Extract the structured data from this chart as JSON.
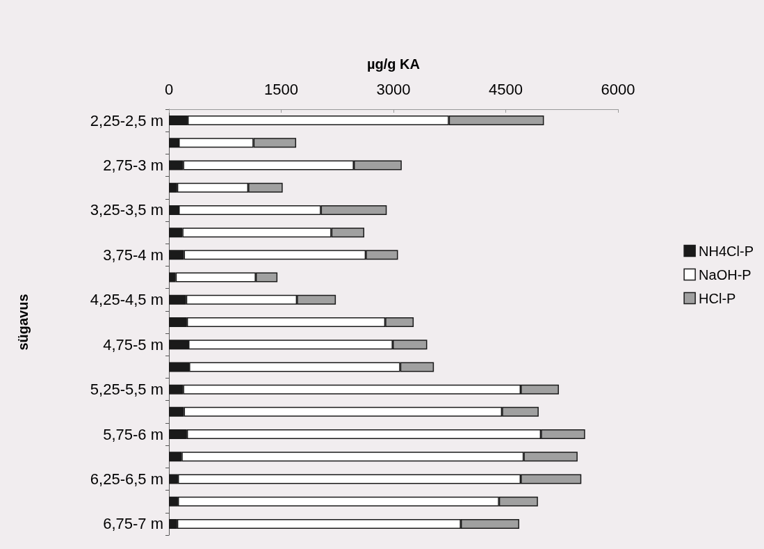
{
  "chart_data": {
    "type": "bar",
    "orientation": "horizontal",
    "stacked": true,
    "xlabel": "µg/g KA",
    "ylabel": "sügavus",
    "categories": [
      "2,25-2,5 m",
      null,
      "2,75-3 m",
      null,
      "3,25-3,5 m",
      null,
      "3,75-4 m",
      null,
      "4,25-4,5 m",
      null,
      "4,75-5 m",
      null,
      "5,25-5,5 m",
      null,
      "5,75-6 m",
      null,
      "6,25-6,5 m",
      null,
      "6,75-7 m"
    ],
    "series": [
      {
        "name": "NH4Cl-P",
        "color": "#1a1a1a",
        "values": [
          250,
          130,
          190,
          110,
          130,
          180,
          200,
          90,
          230,
          240,
          260,
          270,
          190,
          200,
          240,
          170,
          120,
          120,
          110
        ]
      },
      {
        "name": "NaOH-P",
        "color": "#ffffff",
        "values": [
          3490,
          1000,
          2280,
          950,
          1900,
          1990,
          2430,
          1070,
          1480,
          2650,
          2730,
          2820,
          4510,
          4250,
          4730,
          4570,
          4580,
          4290,
          3790
        ]
      },
      {
        "name": "HCl-P",
        "color": "#a0a0a0",
        "values": [
          1270,
          570,
          640,
          460,
          880,
          440,
          430,
          290,
          520,
          380,
          460,
          450,
          510,
          490,
          590,
          720,
          810,
          520,
          780
        ]
      }
    ],
    "xlim": [
      0,
      6000
    ],
    "xticks": [
      0,
      1500,
      3000,
      4500,
      6000
    ],
    "grid": false,
    "legend": "right"
  }
}
